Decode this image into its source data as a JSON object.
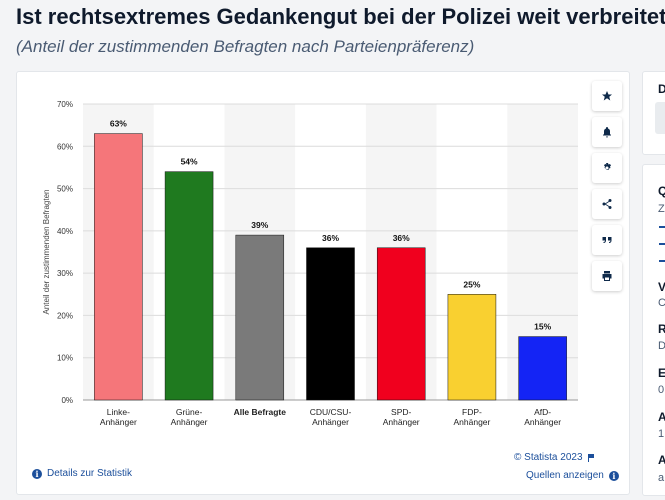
{
  "header": {
    "title": "Ist rechtsextremes Gedankengut bei der Polizei weit verbreitet?",
    "subtitle": "(Anteil der zustimmenden Befragten nach Parteienpräferenz)"
  },
  "chart_data": {
    "type": "bar",
    "title": "Ist rechtsextremes Gedankengut bei der Polizei weit verbreitet?",
    "subtitle": "(Anteil der zustimmenden Befragten nach Parteienpräferenz)",
    "ylabel": "Anteil der zustimmenden Befragten",
    "xlabel": "",
    "ylim": [
      0,
      70
    ],
    "yticks": [
      0,
      10,
      20,
      30,
      40,
      50,
      60,
      70
    ],
    "tick_suffix": "%",
    "grid": true,
    "categories": [
      [
        "Linke-",
        "Anhänger"
      ],
      [
        "Grüne-",
        "Anhänger"
      ],
      [
        "Alle Befragte"
      ],
      [
        "CDU/CSU-",
        "Anhänger"
      ],
      [
        "SPD-",
        "Anhänger"
      ],
      [
        "FDP-",
        "Anhänger"
      ],
      [
        "AfD-",
        "Anhänger"
      ]
    ],
    "values": [
      63,
      54,
      39,
      36,
      36,
      25,
      15
    ],
    "value_labels": [
      "63%",
      "54%",
      "39%",
      "36%",
      "36%",
      "25%",
      "15%"
    ],
    "colors": [
      "#f5767a",
      "#1f7a1f",
      "#7a7a7a",
      "#000000",
      "#f0001e",
      "#f9d030",
      "#1424f5"
    ],
    "bold_category_index": 2
  },
  "footer": {
    "copyright": "© Statista 2023",
    "details_link": "Details zur Statistik",
    "sources_link": "Quellen anzeigen"
  },
  "toolbar": {
    "icons": [
      "star-icon",
      "bell-icon",
      "gear-icon",
      "share-icon",
      "quote-icon",
      "print-icon"
    ]
  },
  "sidebar": {
    "letters": [
      "D",
      "Q",
      "Z",
      "V",
      "C",
      "R",
      "D",
      "E",
      "0",
      "A",
      "1",
      "A",
      "a"
    ]
  },
  "colors": {
    "accent": "#1c4f9b",
    "title": "#0f1a2c"
  }
}
